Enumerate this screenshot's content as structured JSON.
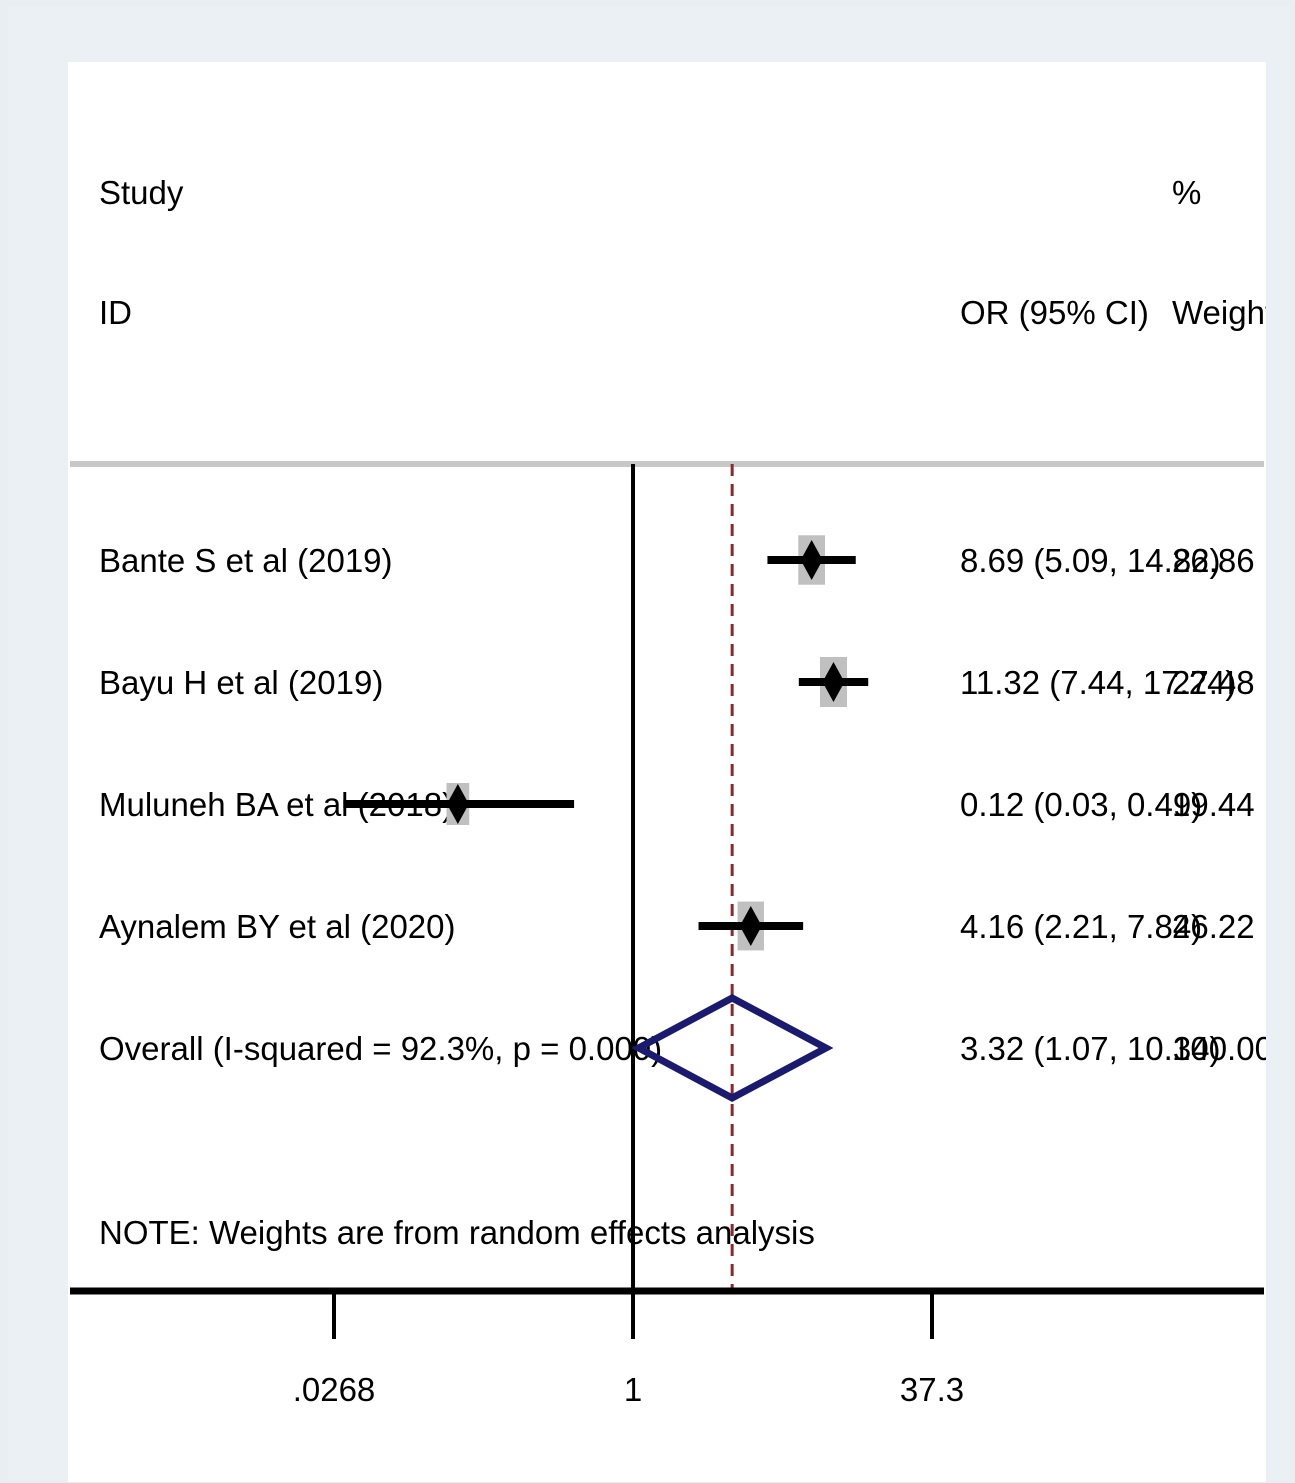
{
  "chart_data": {
    "type": "forest",
    "header": {
      "study_line1": "Study",
      "study_line2": "ID",
      "effect_label": "OR (95% CI)",
      "weight_line1": "%",
      "weight_line2": "Weight"
    },
    "studies": [
      {
        "label": "Bante S et al (2019)",
        "or": 8.69,
        "lo": 5.09,
        "hi": 14.82,
        "ci_text": "8.69 (5.09, 14.82)",
        "weight": 26.86,
        "weight_text": "26.86"
      },
      {
        "label": "Bayu H et al (2019)",
        "or": 11.32,
        "lo": 7.44,
        "hi": 17.24,
        "ci_text": "11.32 (7.44, 17.24)",
        "weight": 27.48,
        "weight_text": "27.48"
      },
      {
        "label": "Muluneh BA et al (2018)",
        "or": 0.12,
        "lo": 0.03,
        "hi": 0.49,
        "ci_text": "0.12 (0.03, 0.49)",
        "weight": 19.44,
        "weight_text": "19.44"
      },
      {
        "label": "Aynalem BY et al (2020)",
        "or": 4.16,
        "lo": 2.21,
        "hi": 7.84,
        "ci_text": "4.16 (2.21, 7.84)",
        "weight": 26.22,
        "weight_text": "26.22"
      }
    ],
    "overall": {
      "label": "Overall  (I-squared = 92.3%, p = 0.000)",
      "or": 3.32,
      "lo": 1.07,
      "hi": 10.34,
      "ci_text": "3.32 (1.07, 10.34)",
      "weight_text": "100.00"
    },
    "note": "NOTE: Weights are from random effects analysis",
    "x_axis": {
      "scale": "log",
      "ticks": [
        0.0268,
        1,
        37.3
      ],
      "tick_labels": [
        ".0268",
        "1",
        "37.3"
      ],
      "null_line": 1
    },
    "colors": {
      "background": "#eaf0f4",
      "plot_background": "#ffffff",
      "ci_line": "#000000",
      "weight_box": "#c0c0c0",
      "point": "#000000",
      "overall_diamond": "#1a1a6e",
      "overall_line": "#8b2a2a",
      "header_rule": "#c8c8c8"
    }
  }
}
